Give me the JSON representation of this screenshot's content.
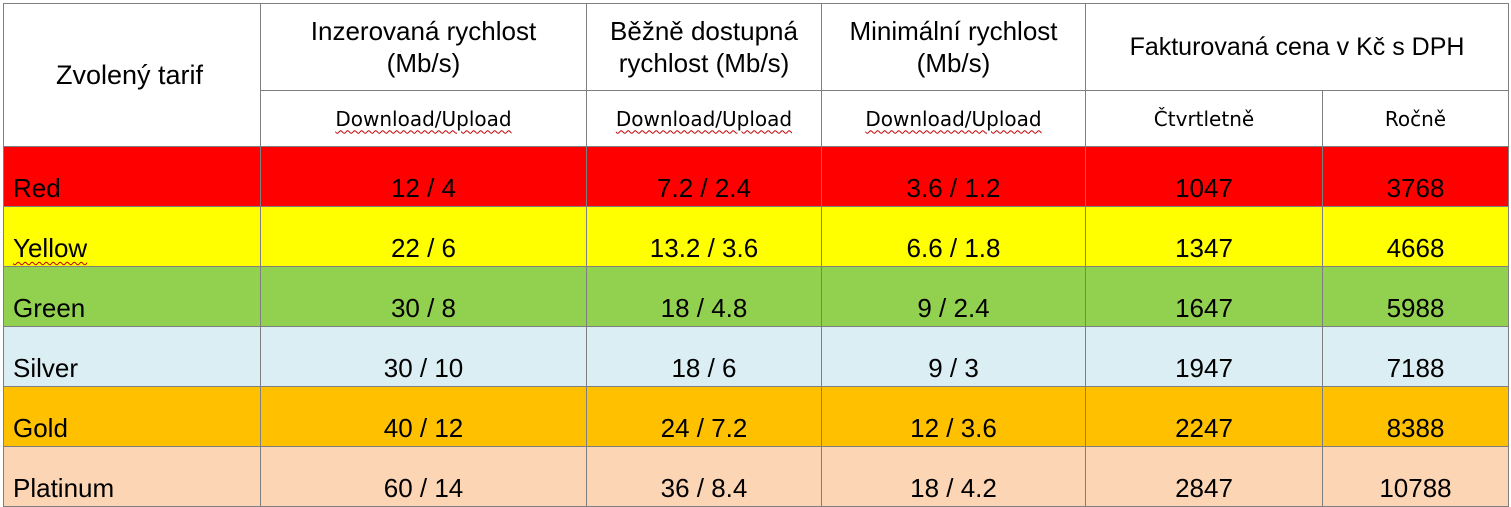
{
  "header": {
    "tariff": "Zvolený tarif",
    "advertised": {
      "line1": "Inzerovaná rychlost",
      "line2": "(Mb/s)",
      "sub": "Download/Upload"
    },
    "common": {
      "line1": "Běžně dostupná",
      "line2": "rychlost (Mb/s)",
      "sub": "Download/Upload"
    },
    "minimum": {
      "line1": "Minimální rychlost",
      "line2": "(Mb/s)",
      "sub": "Download/Upload"
    },
    "price": {
      "title": "Fakturovaná cena v Kč s DPH",
      "quarterly": "Čtvrtletně",
      "yearly": "Ročně"
    }
  },
  "rows": [
    {
      "name": "Red",
      "advertised": "12 / 4",
      "common": "7.2 / 2.4",
      "minimum": "3.6 / 1.2",
      "quarterly": "1047",
      "yearly": "3768",
      "color": "#ff0000"
    },
    {
      "name": "Yellow",
      "advertised": "22 / 6",
      "common": "13.2 / 3.6",
      "minimum": "6.6 / 1.8",
      "quarterly": "1347",
      "yearly": "4668",
      "color": "#ffff00"
    },
    {
      "name": "Green",
      "advertised": "30 / 8",
      "common": "18 / 4.8",
      "minimum": "9 / 2.4",
      "quarterly": "1647",
      "yearly": "5988",
      "color": "#92d050"
    },
    {
      "name": "Silver",
      "advertised": "30 / 10",
      "common": "18 / 6",
      "minimum": "9 / 3",
      "quarterly": "1947",
      "yearly": "7188",
      "color": "#daeef3"
    },
    {
      "name": "Gold",
      "advertised": "40 / 12",
      "common": "24 / 7.2",
      "minimum": "12 / 3.6",
      "quarterly": "2247",
      "yearly": "8388",
      "color": "#ffc000"
    },
    {
      "name": "Platinum",
      "advertised": "60 / 14",
      "common": "36 / 8.4",
      "minimum": "18 / 4.2",
      "quarterly": "2847",
      "yearly": "10788",
      "color": "#fcd5b4"
    }
  ]
}
